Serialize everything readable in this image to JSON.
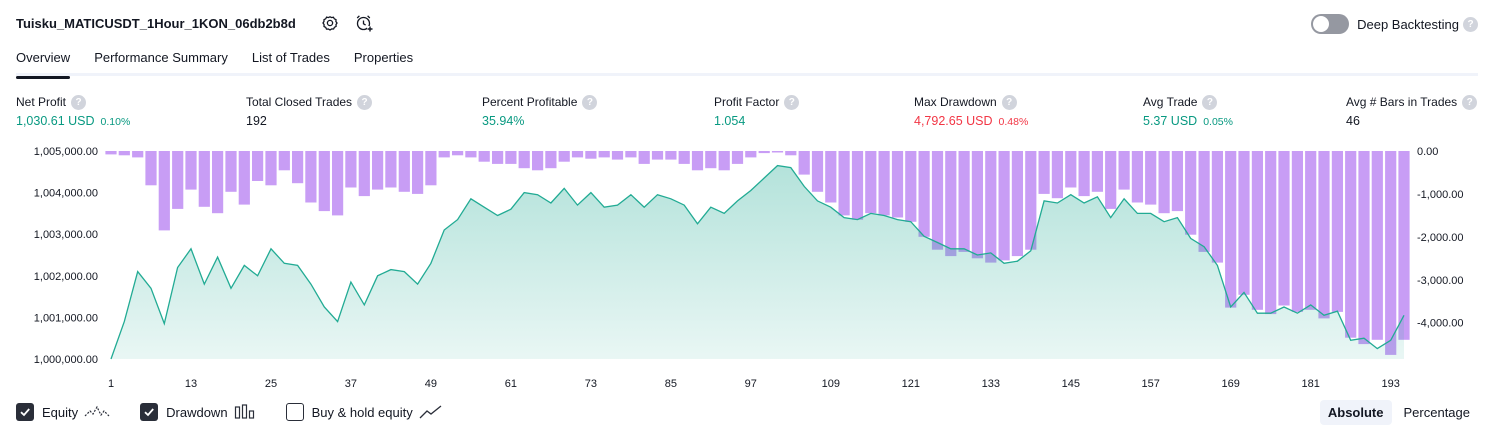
{
  "header": {
    "strategy_title": "Tuisku_MATICUSDT_1Hour_1KON_06db2b8d",
    "settings_icon": "gear-icon",
    "alert_icon": "alarm-clock-plus-icon",
    "deep_backtesting_label": "Deep Backtesting",
    "deep_backtesting_on": false,
    "help_glyph": "?"
  },
  "tabs": [
    {
      "label": "Overview",
      "active": true
    },
    {
      "label": "Performance Summary",
      "active": false
    },
    {
      "label": "List of Trades",
      "active": false
    },
    {
      "label": "Properties",
      "active": false
    }
  ],
  "metrics": [
    {
      "label": "Net Profit",
      "value": "1,030.61 USD",
      "pct": "0.10%",
      "tone": "pos"
    },
    {
      "label": "Total Closed Trades",
      "value": "192",
      "pct": "",
      "tone": "neutral"
    },
    {
      "label": "Percent Profitable",
      "value": "35.94%",
      "pct": "",
      "tone": "pos"
    },
    {
      "label": "Profit Factor",
      "value": "1.054",
      "pct": "",
      "tone": "pos"
    },
    {
      "label": "Max Drawdown",
      "value": "4,792.65 USD",
      "pct": "0.48%",
      "tone": "neg"
    },
    {
      "label": "Avg Trade",
      "value": "5.37 USD",
      "pct": "0.05%",
      "tone": "pos"
    },
    {
      "label": "Avg # Bars in Trades",
      "value": "46",
      "pct": "",
      "tone": "neutral"
    }
  ],
  "chart_data": {
    "type": "area",
    "x_ticks": [
      "1",
      "13",
      "25",
      "37",
      "49",
      "61",
      "73",
      "85",
      "97",
      "109",
      "121",
      "133",
      "145",
      "157",
      "169",
      "181",
      "193"
    ],
    "y_left_ticks": [
      "1,005,000.00",
      "1,004,000.00",
      "1,003,000.00",
      "1,002,000.00",
      "1,001,000.00",
      "1,000,000.00"
    ],
    "y_right_ticks": [
      "0.00",
      "-1,000.00",
      "-2,000.00",
      "-3,000.00",
      "-4,000.00"
    ],
    "y_left_range": [
      1000000,
      1005000
    ],
    "y_right_range": [
      -4800,
      0
    ],
    "x_range": [
      1,
      195
    ],
    "series": [
      {
        "name": "Equity",
        "color": "#22ab94",
        "x": [
          1,
          3,
          5,
          7,
          9,
          11,
          13,
          15,
          17,
          19,
          21,
          23,
          25,
          27,
          29,
          31,
          33,
          35,
          37,
          39,
          41,
          43,
          45,
          47,
          49,
          51,
          53,
          55,
          57,
          59,
          61,
          63,
          65,
          67,
          69,
          71,
          73,
          75,
          77,
          79,
          81,
          83,
          85,
          87,
          89,
          91,
          93,
          95,
          97,
          99,
          101,
          103,
          105,
          107,
          109,
          111,
          113,
          115,
          117,
          119,
          121,
          123,
          125,
          127,
          129,
          131,
          133,
          135,
          137,
          139,
          141,
          143,
          145,
          147,
          149,
          151,
          153,
          155,
          157,
          159,
          161,
          163,
          165,
          167,
          169,
          171,
          173,
          175,
          177,
          179,
          181,
          183,
          185,
          187,
          189,
          191,
          193,
          195
        ],
        "values": [
          1000000,
          1000900,
          1002100,
          1001700,
          1000850,
          1002200,
          1002650,
          1001800,
          1002450,
          1001700,
          1002250,
          1002000,
          1002650,
          1002300,
          1002250,
          1001800,
          1001250,
          1000900,
          1001850,
          1001300,
          1002000,
          1002150,
          1002100,
          1001800,
          1002300,
          1003100,
          1003350,
          1003850,
          1003650,
          1003450,
          1003600,
          1004000,
          1003950,
          1003750,
          1004100,
          1003700,
          1004000,
          1003650,
          1003700,
          1003950,
          1003650,
          1003950,
          1003850,
          1003700,
          1003250,
          1003650,
          1003500,
          1003800,
          1004050,
          1004350,
          1004650,
          1004600,
          1004150,
          1003800,
          1003650,
          1003400,
          1003350,
          1003500,
          1003450,
          1003350,
          1003300,
          1002950,
          1002800,
          1002650,
          1002650,
          1002500,
          1002550,
          1002300,
          1002350,
          1002600,
          1003800,
          1003750,
          1003950,
          1003750,
          1003900,
          1003400,
          1003850,
          1003500,
          1003500,
          1003300,
          1003400,
          1002900,
          1002700,
          1002250,
          1001250,
          1001600,
          1001100,
          1001100,
          1001250,
          1001100,
          1001300,
          1001050,
          1001150,
          1000450,
          1000500,
          1000250,
          1000450,
          1001050
        ]
      },
      {
        "name": "Drawdown",
        "color": "#c89df5",
        "x": [
          1,
          3,
          5,
          7,
          9,
          11,
          13,
          15,
          17,
          19,
          21,
          23,
          25,
          27,
          29,
          31,
          33,
          35,
          37,
          39,
          41,
          43,
          45,
          47,
          49,
          51,
          53,
          55,
          57,
          59,
          61,
          63,
          65,
          67,
          69,
          71,
          73,
          75,
          77,
          79,
          81,
          83,
          85,
          87,
          89,
          91,
          93,
          95,
          97,
          99,
          101,
          103,
          105,
          107,
          109,
          111,
          113,
          115,
          117,
          119,
          121,
          123,
          125,
          127,
          129,
          131,
          133,
          135,
          137,
          139,
          141,
          143,
          145,
          147,
          149,
          151,
          153,
          155,
          157,
          159,
          161,
          163,
          165,
          167,
          169,
          171,
          173,
          175,
          177,
          179,
          181,
          183,
          185,
          187,
          189,
          191,
          193,
          195
        ],
        "values": [
          -80,
          -100,
          -150,
          -800,
          -1850,
          -1350,
          -900,
          -1300,
          -1450,
          -950,
          -1250,
          -700,
          -800,
          -450,
          -750,
          -1200,
          -1400,
          -1500,
          -850,
          -1050,
          -900,
          -850,
          -950,
          -1000,
          -800,
          -150,
          -100,
          -150,
          -250,
          -300,
          -300,
          -400,
          -450,
          -400,
          -250,
          -150,
          -180,
          -150,
          -200,
          -150,
          -300,
          -200,
          -200,
          -300,
          -450,
          -400,
          -450,
          -300,
          -150,
          -50,
          0,
          -100,
          -550,
          -950,
          -1200,
          -1500,
          -1600,
          -1450,
          -1500,
          -1550,
          -1650,
          -2000,
          -2300,
          -2450,
          -2350,
          -2500,
          -2600,
          -2550,
          -2450,
          -2300,
          -1000,
          -1100,
          -850,
          -1050,
          -950,
          -1350,
          -900,
          -1200,
          -1250,
          -1450,
          -1400,
          -1950,
          -2350,
          -2600,
          -3650,
          -3350,
          -3700,
          -3800,
          -3600,
          -3750,
          -3700,
          -3900,
          -3750,
          -4350,
          -4500,
          -4400,
          -4750,
          -4400
        ]
      }
    ],
    "title": "",
    "xlabel": "",
    "ylabel": "",
    "grid": false,
    "legend": "bottom-left"
  },
  "legend": [
    {
      "label": "Equity",
      "checked": true,
      "icon": "equity-line-icon"
    },
    {
      "label": "Drawdown",
      "checked": true,
      "icon": "drawdown-bars-icon"
    },
    {
      "label": "Buy & hold equity",
      "checked": false,
      "icon": "buy-hold-line-icon"
    }
  ],
  "view_mode": {
    "absolute_label": "Absolute",
    "percentage_label": "Percentage",
    "selected": "Absolute"
  }
}
